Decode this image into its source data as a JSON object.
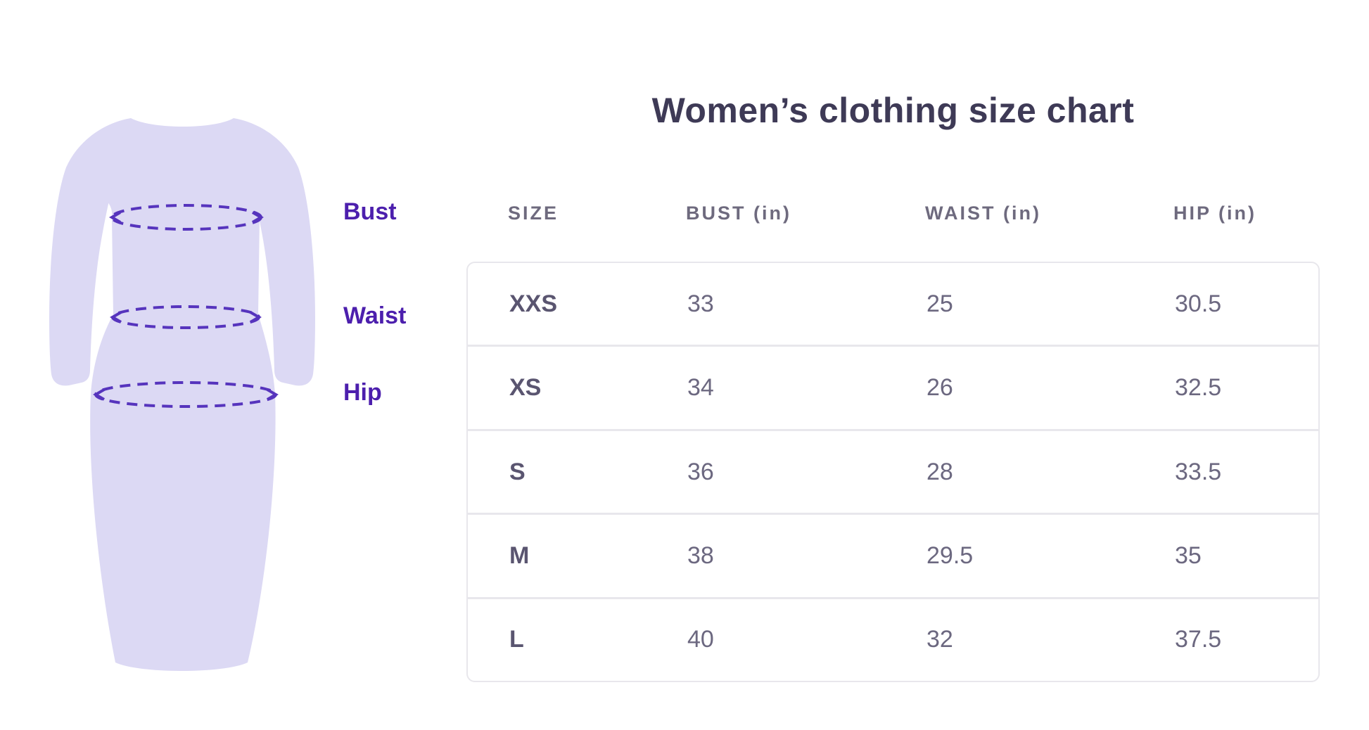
{
  "title": "Women’s clothing size chart",
  "illustration": {
    "labels": [
      "Bust",
      "Waist",
      "Hip"
    ]
  },
  "colors": {
    "dress_fill": "#dcd9f4",
    "measure_line_purple": "#5634bd",
    "label_purple": "#4c1fad",
    "title_color": "#3e3a56",
    "header_text": "#6e6a7e",
    "cell_text": "#6c6880",
    "table_border": "#e8e7ec"
  },
  "chart_data": {
    "type": "table",
    "title": "Women’s clothing size chart",
    "columns": [
      "SIZE",
      "BUST (in)",
      "WAIST (in)",
      "HIP (in)"
    ],
    "rows": [
      {
        "size": "XXS",
        "bust": "33",
        "waist": "25",
        "hip": "30.5"
      },
      {
        "size": "XS",
        "bust": "34",
        "waist": "26",
        "hip": "32.5"
      },
      {
        "size": "S",
        "bust": "36",
        "waist": "28",
        "hip": "33.5"
      },
      {
        "size": "M",
        "bust": "38",
        "waist": "29.5",
        "hip": "35"
      },
      {
        "size": "L",
        "bust": "40",
        "waist": "32",
        "hip": "37.5"
      }
    ]
  }
}
